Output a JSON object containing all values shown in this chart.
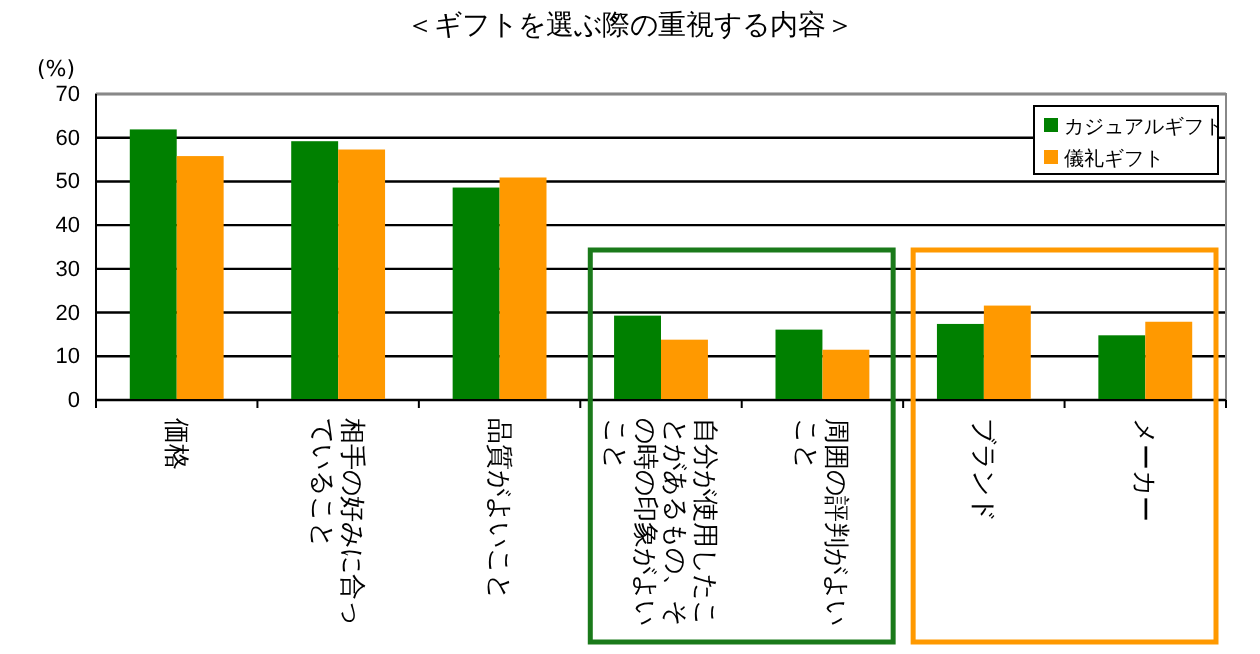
{
  "chart_data": {
    "type": "bar",
    "title": "＜ギフトを選ぶ際の重視する内容＞",
    "ylabel": "(%)",
    "categories": [
      "価格",
      "相手の好みに合っていること",
      "品質がよいこと",
      "自分が使用したことがあるもの、その時の印象がよいこと",
      "周囲の評判がよいこと",
      "ブランド",
      "メーカー"
    ],
    "series": [
      {
        "name": "カジュアルギフト",
        "color": "#008000",
        "values": [
          61.9,
          59.2,
          48.6,
          19.3,
          16.1,
          17.4,
          14.8
        ]
      },
      {
        "name": "儀礼ギフト",
        "color": "#ff9900",
        "values": [
          55.8,
          57.3,
          50.9,
          13.8,
          11.5,
          21.6,
          17.9
        ]
      }
    ],
    "ylim": [
      0,
      70
    ],
    "yticks": [
      0,
      10,
      20,
      30,
      40,
      50,
      60,
      70
    ],
    "grid": "y",
    "legend": "top right"
  }
}
